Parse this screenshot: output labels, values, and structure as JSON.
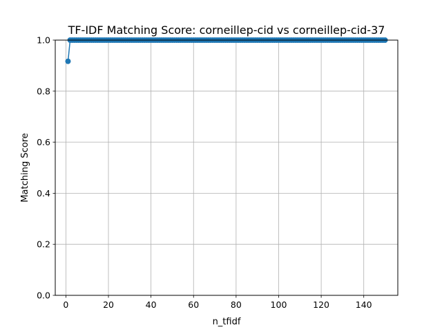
{
  "chart_data": {
    "type": "line",
    "title": "TF-IDF Matching Score: corneillep-cid vs corneillep-cid-37",
    "xlabel": "n_tfidf",
    "ylabel": "Matching Score",
    "xlim": [
      -5,
      156
    ],
    "ylim": [
      0,
      1
    ],
    "xticks": [
      0,
      20,
      40,
      60,
      80,
      100,
      120,
      140
    ],
    "xtick_labels": [
      "0",
      "20",
      "40",
      "60",
      "80",
      "100",
      "120",
      "140"
    ],
    "yticks": [
      0,
      0.2,
      0.4,
      0.6,
      0.8,
      1.0
    ],
    "ytick_labels": [
      "0.0",
      "0.2",
      "0.4",
      "0.6",
      "0.8",
      "1.0"
    ],
    "grid": true,
    "series": [
      {
        "color": "#1f77b4",
        "marker": "circle",
        "x_start": 1,
        "x_end": 150,
        "x_step": 1,
        "first_value": 0.917,
        "rest_value": 1.0
      }
    ]
  }
}
